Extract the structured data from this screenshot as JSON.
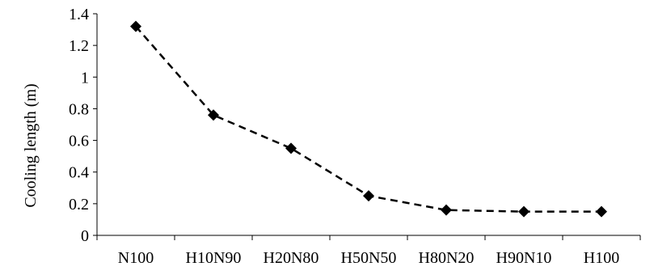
{
  "chart_data": {
    "type": "line",
    "title": "",
    "xlabel": "",
    "ylabel": "Cooling length (m)",
    "categories": [
      "N100",
      "H10N90",
      "H20N80",
      "H50N50",
      "H80N20",
      "H90N10",
      "H100"
    ],
    "series": [
      {
        "values": [
          1.32,
          0.76,
          0.55,
          0.25,
          0.16,
          0.15,
          0.15
        ],
        "color": "#000000",
        "line_style": "dashed",
        "marker": "diamond"
      }
    ],
    "ylim": [
      0,
      1.4
    ],
    "yticks": [
      0,
      0.2,
      0.4,
      0.6,
      0.8,
      1,
      1.2,
      1.4
    ],
    "ytick_labels": [
      "0",
      "0.2",
      "0.4",
      "0.6",
      "0.8",
      "1",
      "1.2",
      "1.4"
    ],
    "grid": false,
    "legend": "none"
  }
}
